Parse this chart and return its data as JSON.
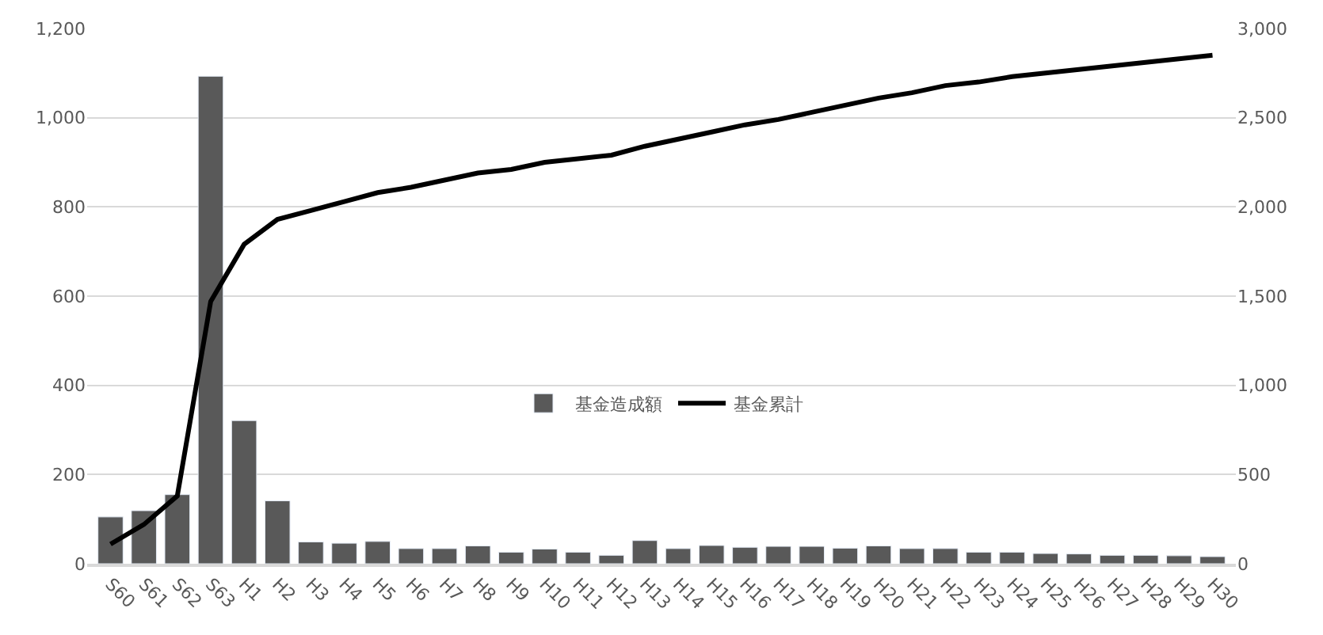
{
  "chart_data": {
    "type": "bar",
    "categories": [
      "S60",
      "S61",
      "S62",
      "S63",
      "H1",
      "H2",
      "H3",
      "H4",
      "H5",
      "H6",
      "H7",
      "H8",
      "H9",
      "H10",
      "H11",
      "H12",
      "H13",
      "H14",
      "H15",
      "H16",
      "H17",
      "H18",
      "H19",
      "H20",
      "H21",
      "H22",
      "H23",
      "H24",
      "H25",
      "H26",
      "H27",
      "H28",
      "H29",
      "H30"
    ],
    "series": [
      {
        "name": "基金造成額",
        "color": "#595959",
        "values": [
          105,
          119,
          155,
          1093,
          321,
          141,
          49,
          46,
          50,
          34,
          34,
          40,
          26,
          33,
          26,
          19,
          52,
          34,
          41,
          37,
          39,
          39,
          35,
          40,
          34,
          34,
          26,
          26,
          23,
          22,
          19,
          19,
          18,
          16
        ]
      },
      {
        "name": "基金累計",
        "type": "line",
        "axis": "y2",
        "color": "#000000",
        "values": [
          110,
          220,
          380,
          1470,
          1790,
          1930,
          1980,
          2030,
          2080,
          2110,
          2150,
          2190,
          2210,
          2250,
          2270,
          2290,
          2340,
          2380,
          2420,
          2460,
          2490,
          2530,
          2570,
          2610,
          2640,
          2680,
          2700,
          2730,
          2750,
          2770,
          2790,
          2810,
          2830,
          2850
        ]
      }
    ],
    "ylim": [
      0,
      1200
    ],
    "yticks": [
      {
        "value": 0,
        "label": "0"
      },
      {
        "value": 200,
        "label": "200"
      },
      {
        "value": 400,
        "label": "400"
      },
      {
        "value": 600,
        "label": "600"
      },
      {
        "value": 800,
        "label": "800"
      },
      {
        "value": 1000,
        "label": "1,000"
      },
      {
        "value": 1200,
        "label": "1,200"
      }
    ],
    "y2lim": [
      0,
      3000
    ],
    "y2ticks": [
      {
        "value": 0,
        "label": "0"
      },
      {
        "value": 500,
        "label": "500"
      },
      {
        "value": 1000,
        "label": "1,000"
      },
      {
        "value": 1500,
        "label": "1,500"
      },
      {
        "value": 2000,
        "label": "2,000"
      },
      {
        "value": 2500,
        "label": "2,500"
      },
      {
        "value": 3000,
        "label": "3,000"
      }
    ],
    "grid": "y",
    "legend": "center",
    "marker": "none",
    "line_style": "solid"
  }
}
